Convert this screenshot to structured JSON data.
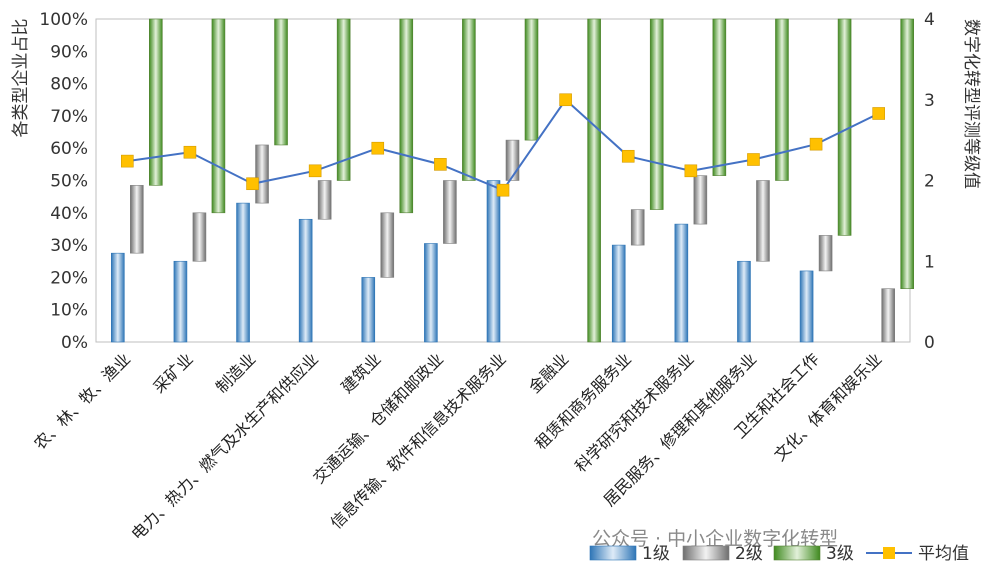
{
  "chart_data": {
    "type": "bar",
    "subtype": "floating-stacked-bar-with-line",
    "title": "",
    "categories": [
      "农、林、牧、渔业",
      "采矿业",
      "制造业",
      "电力、热力、燃气及水生产和供应业",
      "建筑业",
      "交通运输、仓储和邮政业",
      "信息传输、软件和信息技术服务业",
      "金融业",
      "租赁和商务服务业",
      "科学研究和技术服务业",
      "居民服务、修理和其他服务业",
      "卫生和社会工作",
      "文化、体育和娱乐业"
    ],
    "series": [
      {
        "name": "1级",
        "color": "#5b9bd5",
        "values": [
          27.5,
          25,
          43,
          38,
          20,
          30.5,
          50,
          0,
          30,
          36.5,
          25,
          22,
          0
        ]
      },
      {
        "name": "2级",
        "color": "#8c8c8c",
        "values": [
          21,
          15,
          18,
          12,
          20,
          19.5,
          12.5,
          0,
          11,
          15,
          25,
          11,
          16.5
        ]
      },
      {
        "name": "3级",
        "color": "#70ad47",
        "values": [
          51.5,
          60,
          39,
          50,
          60,
          50,
          37.5,
          100,
          59,
          48.5,
          50,
          67,
          83.5
        ]
      },
      {
        "name": "平均值",
        "type": "line",
        "axis": "right",
        "color": "#4472c4",
        "marker_color": "#ffc000",
        "values": [
          2.24,
          2.35,
          1.96,
          2.12,
          2.4,
          2.2,
          1.88,
          3.0,
          2.3,
          2.12,
          2.26,
          2.45,
          2.83
        ]
      }
    ],
    "ylabel": "各类型企业占比",
    "ylim": [
      0,
      100
    ],
    "yticks": [
      "0%",
      "10%",
      "20%",
      "30%",
      "40%",
      "50%",
      "60%",
      "70%",
      "80%",
      "90%",
      "100%"
    ],
    "y2label": "数字化转型评测等级值",
    "y2lim": [
      0,
      4
    ],
    "y2ticks": [
      "0",
      "1",
      "2",
      "3",
      "4"
    ],
    "grid": false,
    "legend_position": "bottom-right"
  },
  "watermark": "公众号 · 中小企业数字化转型"
}
